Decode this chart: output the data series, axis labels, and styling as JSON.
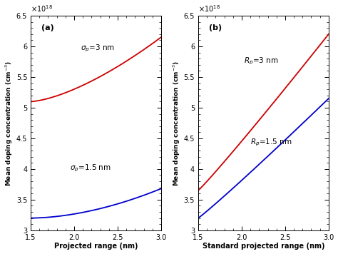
{
  "xlim": [
    1.5,
    3.0
  ],
  "ylim": [
    3.0,
    6.5
  ],
  "yticks": [
    3.0,
    3.5,
    4.0,
    4.5,
    5.0,
    5.5,
    6.0,
    6.5
  ],
  "xticks": [
    1.5,
    2.0,
    2.5,
    3.0
  ],
  "color_red": "#cc0000",
  "color_blue": "#0000cc",
  "ylabel": "Mean doping concentration (cm$^{-3}$)",
  "xlabel_a": "Projected range (nm)",
  "xlabel_b": "Standard projected range (nm)",
  "label_a": "(a)",
  "label_b": "(b)",
  "panel_a_red_label": "$\\sigma_{p}$=3 nm",
  "panel_a_blue_label": "$\\sigma_{p}$=1.5 nm",
  "panel_b_red_label": "$R_{p}$=3 nm",
  "panel_b_blue_label": "$R_{p}$=1.5 nm",
  "background_color": "#ffffff",
  "linewidth": 1.3
}
